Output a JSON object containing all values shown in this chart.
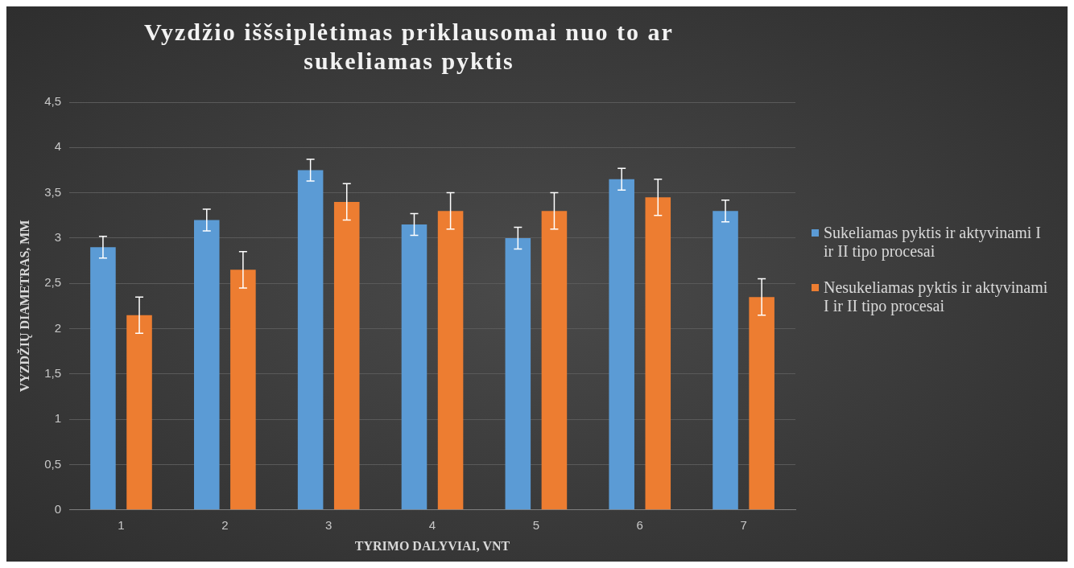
{
  "chart_data": {
    "type": "bar",
    "title": "Vyzdžio iššsiplėtimas priklausomai nuo to ar sukeliamas pyktis",
    "xlabel": "TYRIMO DALYVIAI, VNT",
    "ylabel": "VYZDŽIŲ DIAMETRAS, MM",
    "categories": [
      "1",
      "2",
      "3",
      "4",
      "5",
      "6",
      "7"
    ],
    "series": [
      {
        "name": "Sukeliamas pyktis ir aktyvinami I ir II tipo procesai",
        "color": "#5b9bd5",
        "values": [
          2.9,
          3.2,
          3.75,
          3.15,
          3.0,
          3.65,
          3.3
        ],
        "errors": [
          0.12,
          0.12,
          0.12,
          0.12,
          0.12,
          0.12,
          0.12
        ]
      },
      {
        "name": "Nesukeliamas pyktis ir aktyvinami I ir II tipo procesai",
        "color": "#ed7d31",
        "values": [
          2.15,
          2.65,
          3.4,
          3.3,
          3.3,
          3.45,
          2.35
        ],
        "errors": [
          0.2,
          0.2,
          0.2,
          0.2,
          0.2,
          0.2,
          0.2
        ]
      }
    ],
    "ylim": [
      0,
      4.5
    ],
    "yticks": [
      0,
      {
        "value": 0.5,
        "label": "0,5"
      },
      1,
      {
        "value": 1.5,
        "label": "1,5"
      },
      2,
      {
        "value": 2.5,
        "label": "2,5"
      },
      3,
      {
        "value": 3.5,
        "label": "3,5"
      },
      4,
      {
        "value": 4.5,
        "label": "4,5"
      }
    ],
    "grid": "y",
    "legend": "right"
  }
}
